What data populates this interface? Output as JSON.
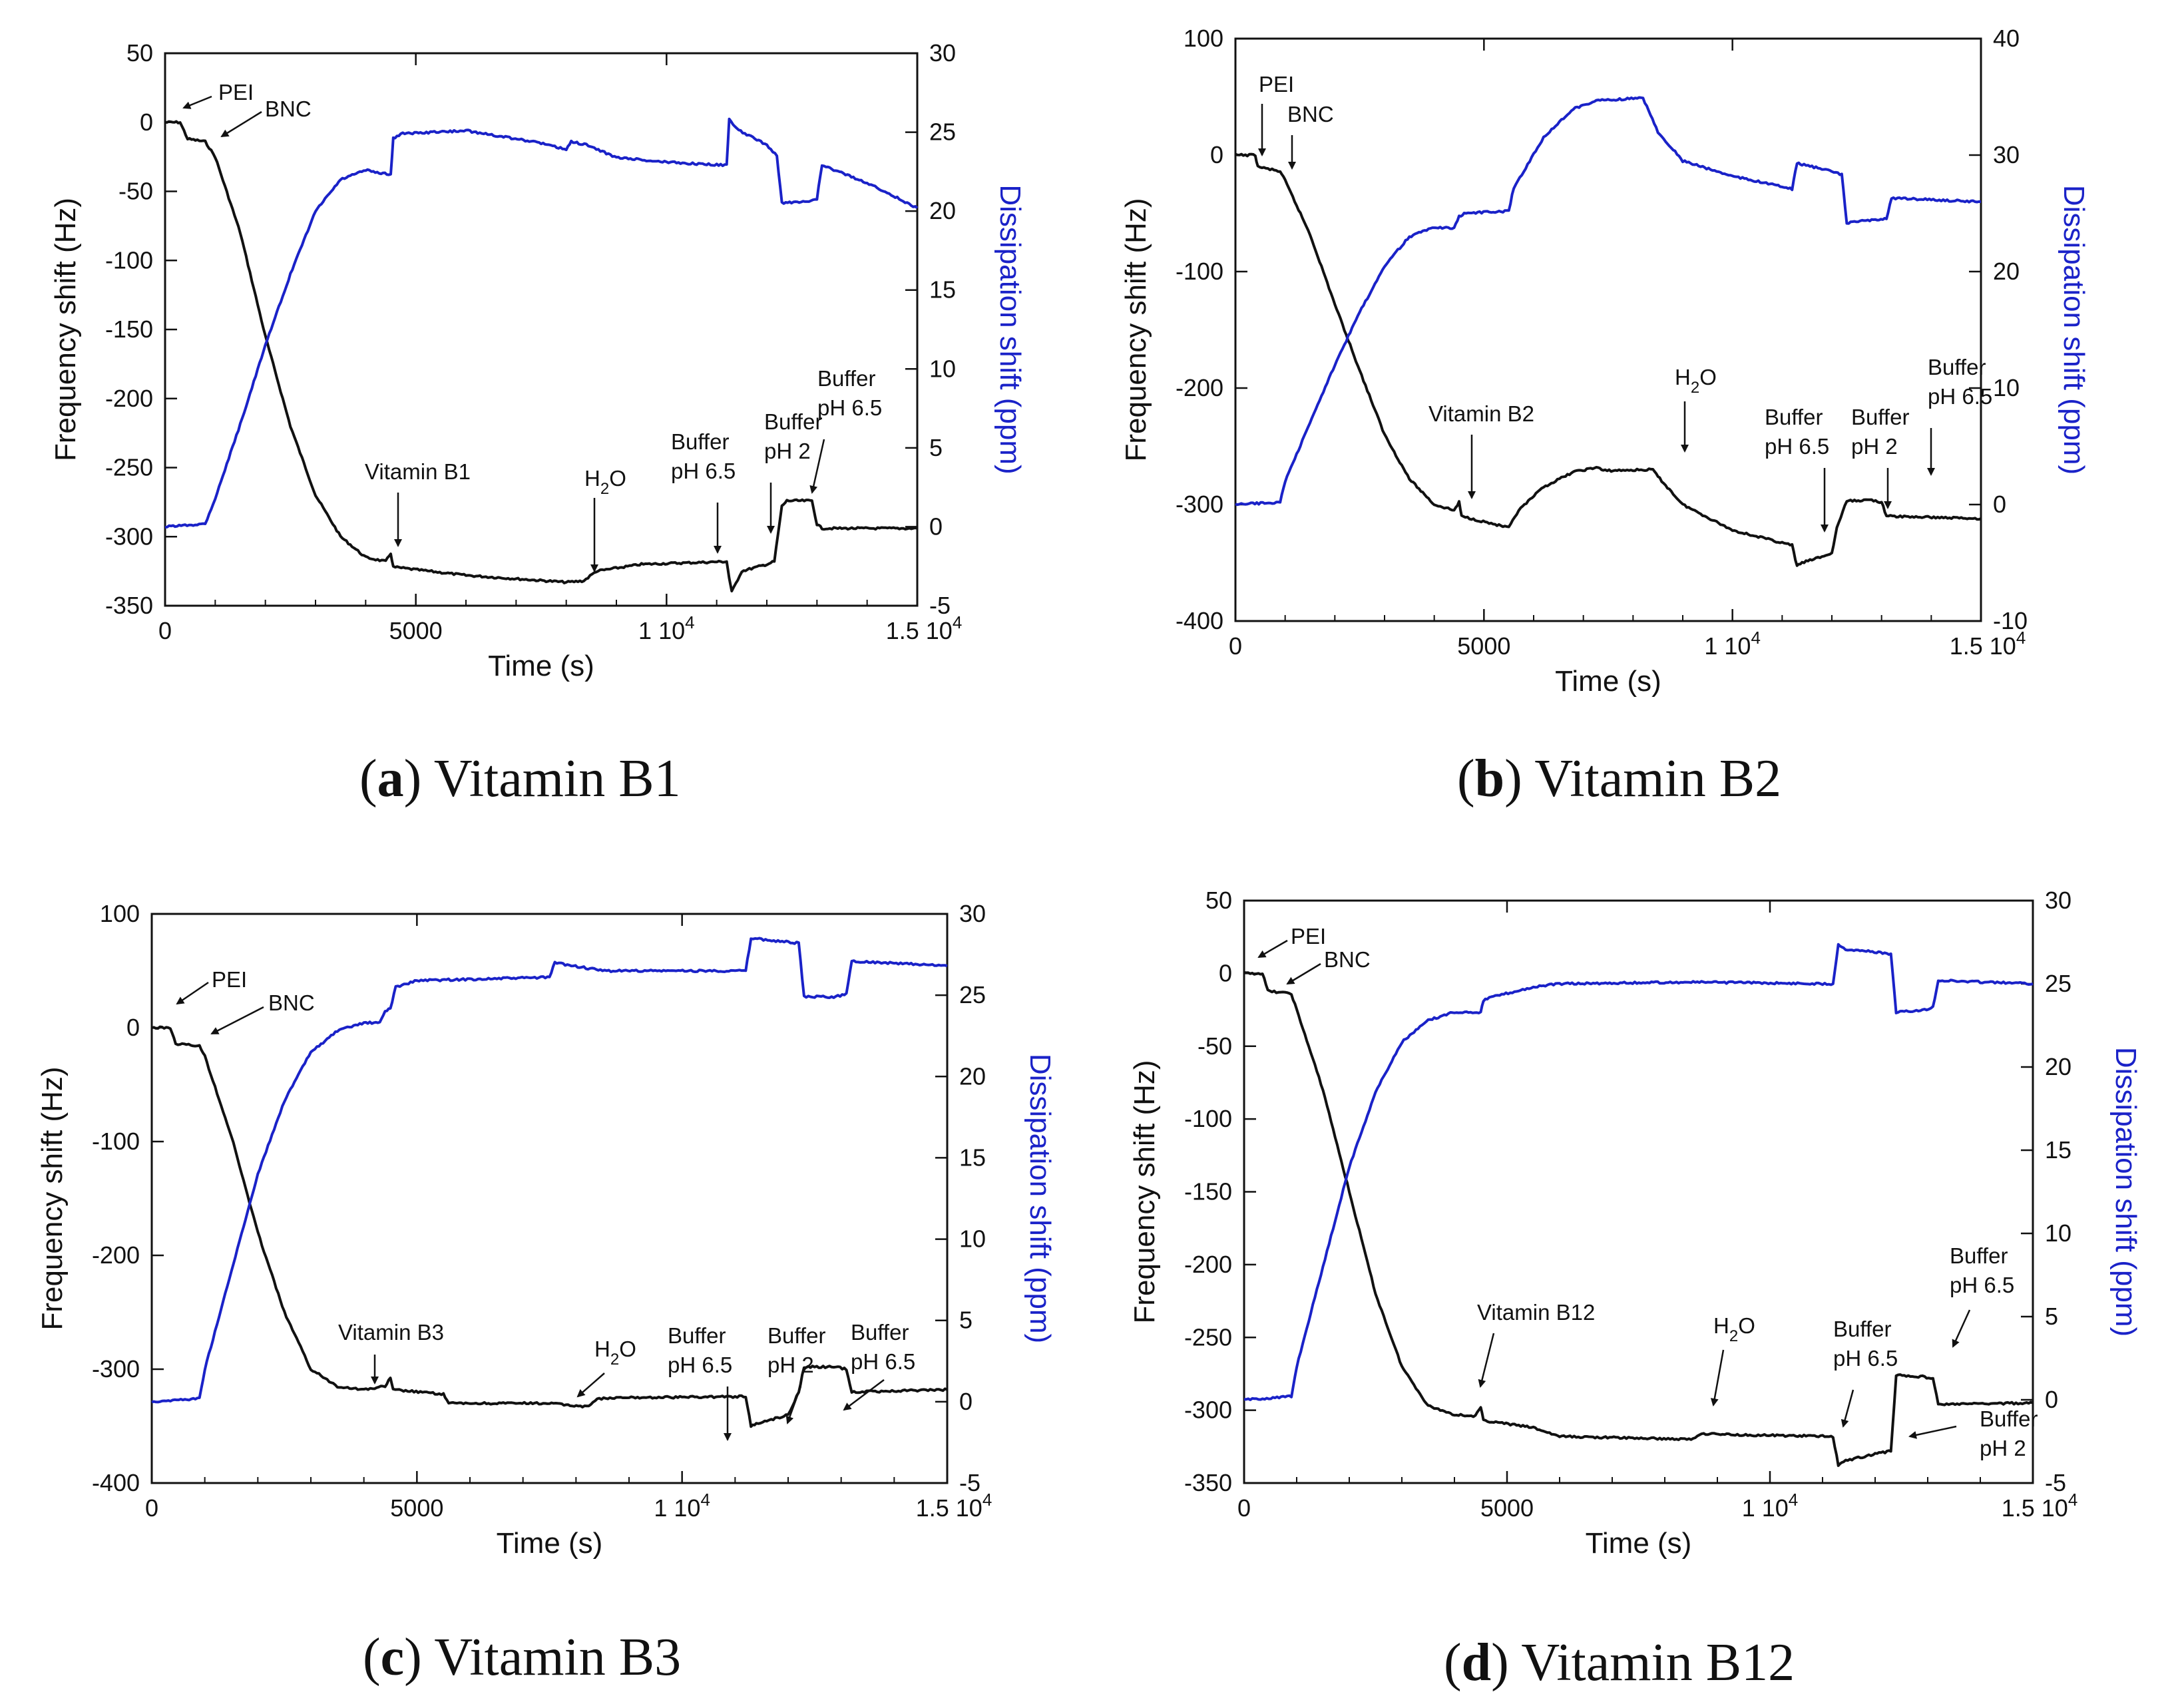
{
  "panels": [
    {
      "id": "a",
      "caption_letter": "a",
      "caption_text": "Vitamin B1",
      "freq_label": "Frequency shift (Hz)",
      "diss_label": "Dissipation shift (ppm)",
      "time_label": "Time (s)",
      "freq_ticks": [
        "50",
        "0",
        "-50",
        "-100",
        "-150",
        "-200",
        "-250",
        "-300",
        "-350"
      ],
      "diss_ticks": [
        "30",
        "25",
        "20",
        "15",
        "10",
        "5",
        "0",
        "-5"
      ],
      "x_ticks": [
        {
          "base": "0",
          "exp": ""
        },
        {
          "base": "5000",
          "exp": ""
        },
        {
          "base": "1 10",
          "exp": "4"
        },
        {
          "base": "1.5 10",
          "exp": "4"
        }
      ],
      "annotations": [
        {
          "lines": [
            "PEI"
          ],
          "sub": ""
        },
        {
          "lines": [
            "BNC"
          ],
          "sub": ""
        },
        {
          "lines": [
            "Vitamin B1"
          ],
          "sub": ""
        },
        {
          "lines": [
            "H",
            "O"
          ],
          "sub": "2"
        },
        {
          "lines": [
            "Buffer",
            "pH 6.5"
          ],
          "sub": ""
        },
        {
          "lines": [
            "Buffer",
            "pH 2"
          ],
          "sub": ""
        },
        {
          "lines": [
            "Buffer",
            "pH 6.5"
          ],
          "sub": ""
        }
      ]
    },
    {
      "id": "b",
      "caption_letter": "b",
      "caption_text": "Vitamin B2",
      "freq_label": "Frequency shift (Hz)",
      "diss_label": "Dissipation shift (ppm)",
      "time_label": "Time (s)",
      "freq_ticks": [
        "100",
        "0",
        "-100",
        "-200",
        "-300",
        "-400"
      ],
      "diss_ticks": [
        "40",
        "30",
        "20",
        "10",
        "0",
        "-10"
      ],
      "x_ticks": [
        {
          "base": "0",
          "exp": ""
        },
        {
          "base": "5000",
          "exp": ""
        },
        {
          "base": "1 10",
          "exp": "4"
        },
        {
          "base": "1.5 10",
          "exp": "4"
        }
      ],
      "annotations": [
        {
          "lines": [
            "PEI"
          ],
          "sub": ""
        },
        {
          "lines": [
            "BNC"
          ],
          "sub": ""
        },
        {
          "lines": [
            "Vitamin B2"
          ],
          "sub": ""
        },
        {
          "lines": [
            "H",
            "O"
          ],
          "sub": "2"
        },
        {
          "lines": [
            "Buffer",
            "pH 6.5"
          ],
          "sub": ""
        },
        {
          "lines": [
            "Buffer",
            "pH 2"
          ],
          "sub": ""
        },
        {
          "lines": [
            "Buffer",
            "pH 6.5"
          ],
          "sub": ""
        }
      ]
    },
    {
      "id": "c",
      "caption_letter": "c",
      "caption_text": "Vitamin B3",
      "freq_label": "Frequency shift (Hz)",
      "diss_label": "Dissipation shift (ppm)",
      "time_label": "Time (s)",
      "freq_ticks": [
        "100",
        "0",
        "-100",
        "-200",
        "-300",
        "-400"
      ],
      "diss_ticks": [
        "30",
        "25",
        "20",
        "15",
        "10",
        "5",
        "0",
        "-5"
      ],
      "x_ticks": [
        {
          "base": "0",
          "exp": ""
        },
        {
          "base": "5000",
          "exp": ""
        },
        {
          "base": "1 10",
          "exp": "4"
        },
        {
          "base": "1.5 10",
          "exp": "4"
        }
      ],
      "annotations": [
        {
          "lines": [
            "PEI"
          ],
          "sub": ""
        },
        {
          "lines": [
            "BNC"
          ],
          "sub": ""
        },
        {
          "lines": [
            "Vitamin B3"
          ],
          "sub": ""
        },
        {
          "lines": [
            "H",
            "O"
          ],
          "sub": "2"
        },
        {
          "lines": [
            "Buffer",
            "pH 6.5"
          ],
          "sub": ""
        },
        {
          "lines": [
            "Buffer",
            "pH 2"
          ],
          "sub": ""
        },
        {
          "lines": [
            "Buffer",
            "pH 6.5"
          ],
          "sub": ""
        }
      ]
    },
    {
      "id": "d",
      "caption_letter": "d",
      "caption_text": "Vitamin B12",
      "freq_label": "Frequency shift (Hz)",
      "diss_label": "Dissipation shift (ppm)",
      "time_label": "Time (s)",
      "freq_ticks": [
        "50",
        "0",
        "-50",
        "-100",
        "-150",
        "-200",
        "-250",
        "-300",
        "-350"
      ],
      "diss_ticks": [
        "30",
        "25",
        "20",
        "15",
        "10",
        "5",
        "0",
        "-5"
      ],
      "x_ticks": [
        {
          "base": "0",
          "exp": ""
        },
        {
          "base": "5000",
          "exp": ""
        },
        {
          "base": "1 10",
          "exp": "4"
        },
        {
          "base": "1.5 10",
          "exp": "4"
        }
      ],
      "annotations": [
        {
          "lines": [
            "PEI"
          ],
          "sub": ""
        },
        {
          "lines": [
            "BNC"
          ],
          "sub": ""
        },
        {
          "lines": [
            "Vitamin B12"
          ],
          "sub": ""
        },
        {
          "lines": [
            "H",
            "O"
          ],
          "sub": "2"
        },
        {
          "lines": [
            "Buffer",
            "pH 6.5"
          ],
          "sub": ""
        },
        {
          "lines": [
            "Buffer",
            "pH 6.5"
          ],
          "sub": ""
        },
        {
          "lines": [
            "Buffer",
            "pH 2"
          ],
          "sub": ""
        }
      ]
    }
  ],
  "chart_data": [
    {
      "type": "line",
      "title": "(a) Vitamin B1",
      "xlabel": "Time (s)",
      "ylabel": "Frequency shift (Hz)",
      "y2label": "Dissipation shift (ppm)",
      "xlim": [
        0,
        15000
      ],
      "ylim": [
        -350,
        50
      ],
      "y2lim": [
        -5,
        30
      ],
      "series": [
        {
          "name": "Frequency shift",
          "axis": "left",
          "color": "#111111",
          "x": [
            0,
            300,
            450,
            800,
            1000,
            1500,
            2000,
            2500,
            3000,
            3500,
            4000,
            4400,
            4500,
            4550,
            6000,
            8000,
            8350,
            8600,
            9500,
            11200,
            11250,
            11300,
            11500,
            12000,
            12150,
            12300,
            12400,
            12900,
            13000,
            13100,
            15000
          ],
          "y": [
            0,
            0,
            -12,
            -14,
            -25,
            -80,
            -155,
            -220,
            -270,
            -300,
            -315,
            -318,
            -312,
            -322,
            -328,
            -333,
            -332,
            -325,
            -320,
            -318,
            -330,
            -340,
            -325,
            -320,
            -318,
            -278,
            -274,
            -274,
            -291,
            -294,
            -294
          ]
        },
        {
          "name": "Dissipation shift",
          "axis": "right",
          "color": "#1a22c8",
          "x": [
            0,
            800,
            1000,
            1500,
            2000,
            2500,
            3000,
            3500,
            4000,
            4500,
            4550,
            4700,
            6000,
            7500,
            8000,
            8100,
            8400,
            9000,
            10000,
            11200,
            11250,
            11400,
            12000,
            12200,
            12300,
            12800,
            13000,
            13100,
            14000,
            15000
          ],
          "y": [
            0,
            0.2,
            1.8,
            6.5,
            11.5,
            16,
            20,
            22,
            22.6,
            22.3,
            24.6,
            24.9,
            25.1,
            24.3,
            23.9,
            24.4,
            24.2,
            23.4,
            23.1,
            22.9,
            25.8,
            25.2,
            24.2,
            23.5,
            20.5,
            20.6,
            20.8,
            22.9,
            21.8,
            20.2
          ]
        }
      ]
    },
    {
      "type": "line",
      "title": "(b) Vitamin B2",
      "xlabel": "Time (s)",
      "ylabel": "Frequency shift (Hz)",
      "y2label": "Dissipation shift (ppm)",
      "xlim": [
        0,
        15000
      ],
      "ylim": [
        -400,
        100
      ],
      "y2lim": [
        -10,
        40
      ],
      "series": [
        {
          "name": "Frequency shift",
          "axis": "left",
          "color": "#111111",
          "x": [
            0,
            400,
            450,
            900,
            1000,
            1500,
            2000,
            2500,
            3000,
            3500,
            4000,
            4400,
            4500,
            4550,
            5500,
            5700,
            6200,
            6800,
            7300,
            7400,
            8400,
            8500,
            9000,
            10000,
            11200,
            11300,
            11400,
            12000,
            12100,
            12300,
            12800,
            13000,
            13100,
            15000
          ],
          "y": [
            0,
            0,
            -10,
            -14,
            -22,
            -68,
            -128,
            -185,
            -240,
            -278,
            -300,
            -305,
            -298,
            -310,
            -320,
            -305,
            -285,
            -272,
            -268,
            -271,
            -270,
            -276,
            -300,
            -322,
            -335,
            -353,
            -350,
            -342,
            -320,
            -297,
            -296,
            -298,
            -310,
            -312
          ]
        },
        {
          "name": "Dissipation shift",
          "axis": "right",
          "color": "#1a22c8",
          "x": [
            0,
            900,
            1000,
            1500,
            2000,
            2500,
            3000,
            3500,
            4000,
            4400,
            4500,
            4600,
            5500,
            5600,
            6200,
            6800,
            7300,
            8200,
            8500,
            9000,
            10000,
            11200,
            11300,
            11400,
            12000,
            12200,
            12300,
            12800,
            13100,
            13200,
            15000
          ],
          "y": [
            0,
            0.2,
            2,
            7,
            12,
            16.5,
            20.5,
            23,
            23.8,
            23.7,
            24.7,
            25,
            25.2,
            27.2,
            31.5,
            34,
            34.7,
            34.9,
            32,
            29.5,
            28.2,
            27.1,
            29.3,
            29.2,
            28.6,
            28.3,
            24.2,
            24.4,
            24.6,
            26.3,
            26
          ]
        }
      ]
    },
    {
      "type": "line",
      "title": "(c) Vitamin B3",
      "xlabel": "Time (s)",
      "ylabel": "Frequency shift (Hz)",
      "y2label": "Dissipation shift (ppm)",
      "xlim": [
        0,
        15000
      ],
      "ylim": [
        -400,
        100
      ],
      "y2lim": [
        -5,
        30
      ],
      "series": [
        {
          "name": "Frequency shift",
          "axis": "left",
          "color": "#111111",
          "x": [
            0,
            350,
            450,
            900,
            1000,
            1500,
            2000,
            2500,
            3000,
            3500,
            4000,
            4400,
            4500,
            4550,
            5500,
            5600,
            7500,
            8200,
            8400,
            9000,
            11200,
            11300,
            11400,
            12000,
            12200,
            12300,
            12900,
            13100,
            13200,
            15000
          ],
          "y": [
            0,
            0,
            -14,
            -16,
            -25,
            -95,
            -180,
            -250,
            -300,
            -315,
            -318,
            -315,
            -308,
            -318,
            -322,
            -330,
            -330,
            -333,
            -326,
            -325,
            -324,
            -350,
            -348,
            -340,
            -320,
            -298,
            -298,
            -300,
            -320,
            -318
          ]
        },
        {
          "name": "Dissipation shift",
          "axis": "right",
          "color": "#1a22c8",
          "x": [
            0,
            900,
            1000,
            1500,
            2000,
            2500,
            3000,
            3500,
            4000,
            4300,
            4400,
            4500,
            4600,
            5000,
            7500,
            7600,
            8500,
            11200,
            11300,
            12200,
            12300,
            12900,
            13100,
            13200,
            15000
          ],
          "y": [
            0,
            0.2,
            2,
            8,
            14,
            18.5,
            21.5,
            22.8,
            23.3,
            23.3,
            24,
            24.2,
            25.5,
            25.9,
            26.1,
            27,
            26.5,
            26.5,
            28.5,
            28.2,
            24.9,
            24.9,
            25.1,
            27.1,
            26.8
          ]
        }
      ]
    },
    {
      "type": "line",
      "title": "(d) Vitamin B12",
      "xlabel": "Time (s)",
      "ylabel": "Frequency shift (Hz)",
      "y2label": "Dissipation shift (ppm)",
      "xlim": [
        0,
        15000
      ],
      "ylim": [
        -350,
        50
      ],
      "y2lim": [
        -5,
        30
      ],
      "series": [
        {
          "name": "Frequency shift",
          "axis": "left",
          "color": "#111111",
          "x": [
            0,
            350,
            450,
            900,
            1000,
            1500,
            2000,
            2500,
            3000,
            3500,
            4000,
            4400,
            4500,
            4550,
            5500,
            6000,
            8500,
            8700,
            9500,
            11200,
            11300,
            11400,
            12000,
            12300,
            12400,
            12900,
            13100,
            13200,
            15000
          ],
          "y": [
            0,
            0,
            -12,
            -14,
            -25,
            -80,
            -150,
            -220,
            -270,
            -297,
            -303,
            -304,
            -298,
            -307,
            -312,
            -318,
            -320,
            -316,
            -317,
            -318,
            -338,
            -335,
            -330,
            -328,
            -276,
            -277,
            -278,
            -296,
            -295
          ]
        },
        {
          "name": "Dissipation shift",
          "axis": "right",
          "color": "#1a22c8",
          "x": [
            0,
            900,
            1000,
            1500,
            2000,
            2500,
            3000,
            3500,
            4000,
            4500,
            4550,
            4700,
            5500,
            6000,
            8500,
            11200,
            11300,
            11400,
            12300,
            12400,
            12900,
            13100,
            13200,
            15000
          ],
          "y": [
            0,
            0.2,
            2,
            8,
            14,
            18.5,
            21.5,
            22.8,
            23.3,
            23.3,
            24,
            24.2,
            24.8,
            25,
            25.1,
            25,
            27.4,
            27.1,
            26.8,
            23.3,
            23.4,
            23.6,
            25.2,
            25
          ]
        }
      ]
    }
  ]
}
